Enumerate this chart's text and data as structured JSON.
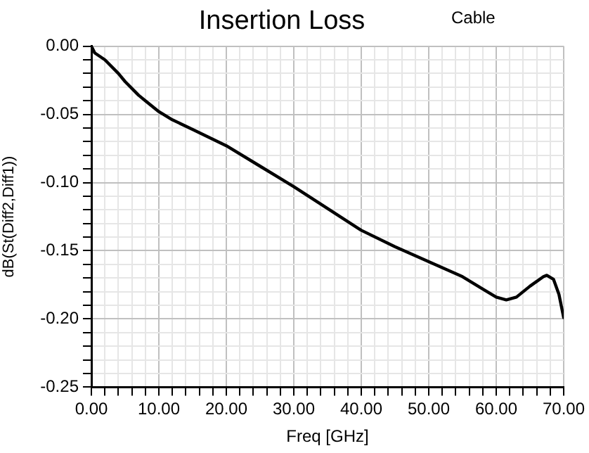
{
  "chart_data": {
    "type": "line",
    "title": "Insertion Loss",
    "annotations": [
      "Cable"
    ],
    "xlabel": "Freq [GHz]",
    "ylabel": "dB(St(Diff2,Diff1))",
    "x": [
      0,
      0.5,
      2,
      4,
      5,
      7,
      8,
      10,
      12,
      15,
      20,
      25,
      30,
      35,
      40,
      45,
      50,
      55,
      58,
      60,
      61.5,
      63,
      65,
      67,
      67.5,
      68.5,
      69.3,
      70
    ],
    "series": [
      {
        "color": "#000000",
        "values": [
          0,
          -0.005,
          -0.01,
          -0.02,
          -0.026,
          -0.036,
          -0.04,
          -0.048,
          -0.054,
          -0.061,
          -0.073,
          -0.088,
          -0.103,
          -0.119,
          -0.135,
          -0.147,
          -0.158,
          -0.169,
          -0.178,
          -0.184,
          -0.186,
          -0.184,
          -0.176,
          -0.169,
          -0.168,
          -0.171,
          -0.182,
          -0.199
        ]
      }
    ],
    "xlim": [
      0,
      70
    ],
    "ylim": [
      -0.25,
      0
    ],
    "xticks": [
      {
        "value": 0,
        "label": "0.00"
      },
      {
        "value": 2,
        "label": null
      },
      {
        "value": 4,
        "label": null
      },
      {
        "value": 6,
        "label": null
      },
      {
        "value": 8,
        "label": null
      },
      {
        "value": 10,
        "label": "10.00"
      },
      {
        "value": 12,
        "label": null
      },
      {
        "value": 14,
        "label": null
      },
      {
        "value": 16,
        "label": null
      },
      {
        "value": 18,
        "label": null
      },
      {
        "value": 20,
        "label": "20.00"
      },
      {
        "value": 22,
        "label": null
      },
      {
        "value": 24,
        "label": null
      },
      {
        "value": 26,
        "label": null
      },
      {
        "value": 28,
        "label": null
      },
      {
        "value": 30,
        "label": "30.00"
      },
      {
        "value": 32,
        "label": null
      },
      {
        "value": 34,
        "label": null
      },
      {
        "value": 36,
        "label": null
      },
      {
        "value": 38,
        "label": null
      },
      {
        "value": 40,
        "label": "40.00"
      },
      {
        "value": 42,
        "label": null
      },
      {
        "value": 44,
        "label": null
      },
      {
        "value": 46,
        "label": null
      },
      {
        "value": 48,
        "label": null
      },
      {
        "value": 50,
        "label": "50.00"
      },
      {
        "value": 52,
        "label": null
      },
      {
        "value": 54,
        "label": null
      },
      {
        "value": 56,
        "label": null
      },
      {
        "value": 58,
        "label": null
      },
      {
        "value": 60,
        "label": "60.00"
      },
      {
        "value": 62,
        "label": null
      },
      {
        "value": 64,
        "label": null
      },
      {
        "value": 66,
        "label": null
      },
      {
        "value": 68,
        "label": null
      },
      {
        "value": 70,
        "label": "70.00"
      }
    ],
    "yticks": [
      {
        "value": -0.25,
        "label": "-0.25"
      },
      {
        "value": -0.24,
        "label": null
      },
      {
        "value": -0.23,
        "label": null
      },
      {
        "value": -0.22,
        "label": null
      },
      {
        "value": -0.21,
        "label": null
      },
      {
        "value": -0.2,
        "label": "-0.20"
      },
      {
        "value": -0.19,
        "label": null
      },
      {
        "value": -0.18,
        "label": null
      },
      {
        "value": -0.17,
        "label": null
      },
      {
        "value": -0.16,
        "label": null
      },
      {
        "value": -0.15,
        "label": "-0.15"
      },
      {
        "value": -0.14,
        "label": null
      },
      {
        "value": -0.13,
        "label": null
      },
      {
        "value": -0.12,
        "label": null
      },
      {
        "value": -0.11,
        "label": null
      },
      {
        "value": -0.1,
        "label": "-0.10"
      },
      {
        "value": -0.09,
        "label": null
      },
      {
        "value": -0.08,
        "label": null
      },
      {
        "value": -0.07,
        "label": null
      },
      {
        "value": -0.06,
        "label": null
      },
      {
        "value": -0.05,
        "label": "-0.05"
      },
      {
        "value": -0.04,
        "label": null
      },
      {
        "value": -0.03,
        "label": null
      },
      {
        "value": -0.02,
        "label": null
      },
      {
        "value": -0.01,
        "label": null
      },
      {
        "value": 0,
        "label": "0.00"
      }
    ],
    "grid": true,
    "legend": false,
    "marker": "none",
    "line_style": "solid"
  }
}
